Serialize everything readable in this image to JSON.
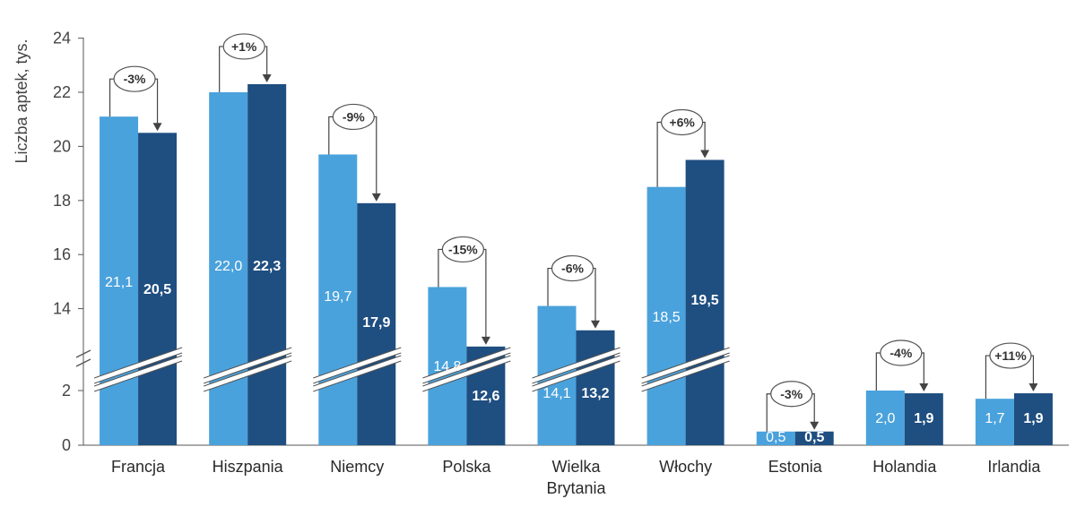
{
  "chart_data": {
    "type": "bar",
    "title": "",
    "ylabel": "Liczba aptek, tys.",
    "xlabel": "",
    "y_ticks": [
      "0",
      "2",
      "14",
      "16",
      "18",
      "20",
      "22",
      "24"
    ],
    "axis_break": true,
    "categories": [
      {
        "name": "Francja",
        "lines": [
          "Francja"
        ]
      },
      {
        "name": "Hiszpania",
        "lines": [
          "Hiszpania"
        ]
      },
      {
        "name": "Niemcy",
        "lines": [
          "Niemcy"
        ]
      },
      {
        "name": "Polska",
        "lines": [
          "Polska"
        ]
      },
      {
        "name": "Wielka Brytania",
        "lines": [
          "Wielka",
          "Brytania"
        ]
      },
      {
        "name": "Włochy",
        "lines": [
          "Włochy"
        ]
      },
      {
        "name": "Estonia",
        "lines": [
          "Estonia"
        ]
      },
      {
        "name": "Holandia",
        "lines": [
          "Holandia"
        ]
      },
      {
        "name": "Irlandia",
        "lines": [
          "Irlandia"
        ]
      }
    ],
    "series": [
      {
        "name": "earlier",
        "color": "#4aa2dc",
        "values": [
          21.1,
          22.0,
          19.7,
          14.8,
          14.1,
          18.5,
          0.5,
          2.0,
          1.7
        ],
        "labels": [
          "21,1",
          "22,0",
          "19,7",
          "14,8",
          "14,1",
          "18,5",
          "0,5",
          "2,0",
          "1,7"
        ]
      },
      {
        "name": "later",
        "color": "#1f4e80",
        "values": [
          20.5,
          22.3,
          17.9,
          12.6,
          13.2,
          19.5,
          0.5,
          1.9,
          1.9
        ],
        "labels": [
          "20,5",
          "22,3",
          "17,9",
          "12,6",
          "13,2",
          "19,5",
          "0,5",
          "1,9",
          "1,9"
        ]
      }
    ],
    "changes": [
      "-3%",
      "+1%",
      "-9%",
      "-15%",
      "-6%",
      "+6%",
      "-3%",
      "-4%",
      "+11%"
    ]
  }
}
